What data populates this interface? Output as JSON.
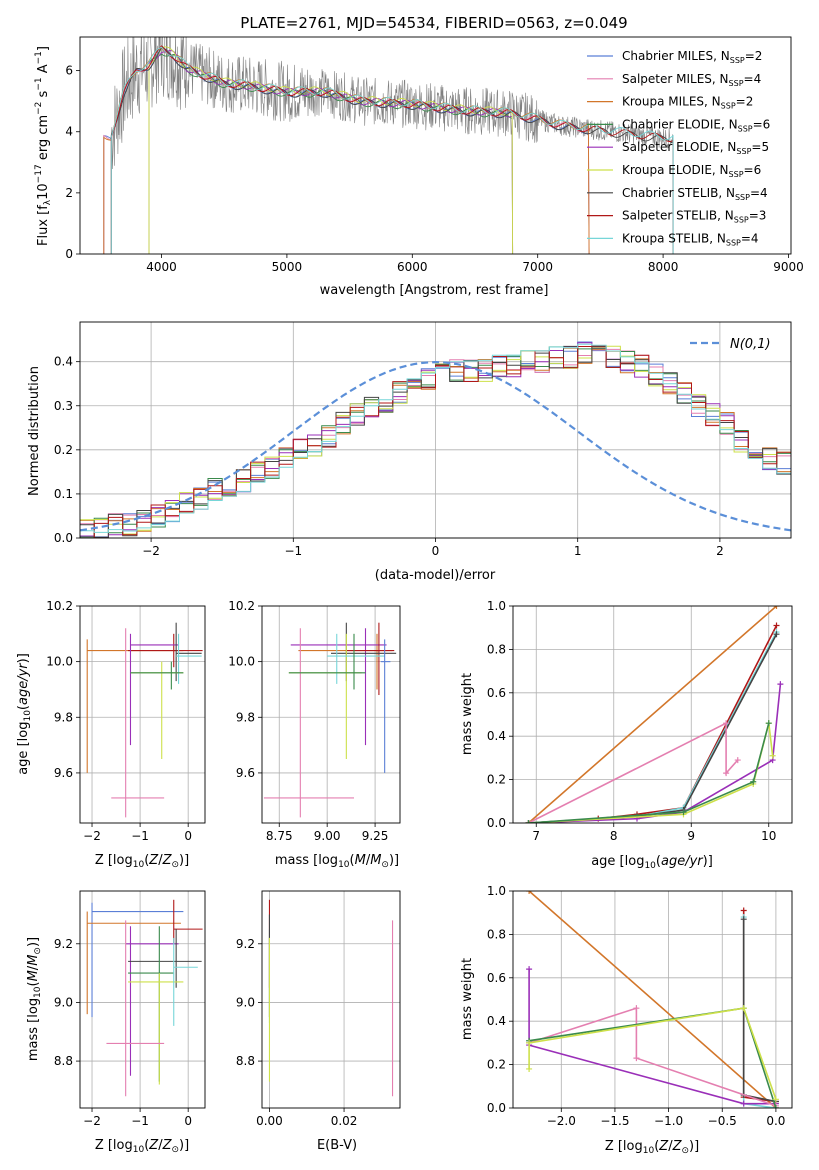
{
  "title": "PLATE=2761, MJD=54534, FIBERID=0563, z=0.049",
  "colors": {
    "chabrier_miles": "#5b7fd6",
    "salpeter_miles": "#e47fb0",
    "kroupa_miles": "#d2762a",
    "chabrier_elodie": "#3a8a4c",
    "salpeter_elodie": "#9a2fb8",
    "kroupa_elodie": "#cde04a",
    "chabrier_stelib": "#444444",
    "salpeter_stelib": "#b01818",
    "kroupa_stelib": "#76d6d8",
    "data": "#808080",
    "gauss": "#5b8fd8"
  },
  "chart_data": [
    {
      "type": "line",
      "xlabel": "wavelength [Angstrom, rest frame]",
      "ylabel": "Flux [f_λ10^-17 erg cm^-2 s^-1 A^-1]",
      "xlim": [
        3350,
        9020
      ],
      "ylim": [
        0,
        7.1
      ],
      "xticks": [
        4000,
        5000,
        6000,
        7000,
        8000,
        9000
      ],
      "yticks": [
        0,
        2,
        4,
        6
      ],
      "legend_position": "upper right",
      "continuum": {
        "x": [
          3600,
          3700,
          3800,
          3900,
          4000,
          4100,
          4200,
          4300,
          4500,
          4700,
          5000,
          5300,
          5600,
          6000,
          6400,
          6800,
          7200,
          7600,
          8000,
          8100
        ],
        "y": [
          3.9,
          5.3,
          6.0,
          6.2,
          6.7,
          6.5,
          6.1,
          5.9,
          5.6,
          5.5,
          5.3,
          5.3,
          5.0,
          4.9,
          4.7,
          4.6,
          4.2,
          4.0,
          3.8,
          3.8
        ]
      },
      "series": [
        {
          "name": "Chabrier MILES",
          "nssp": "2",
          "x_range": [
            3540,
            7410
          ]
        },
        {
          "name": "Salpeter MILES",
          "nssp": "4",
          "x_range": [
            3540,
            7410
          ]
        },
        {
          "name": "Kroupa MILES",
          "nssp": "2",
          "x_range": [
            3540,
            7410
          ]
        },
        {
          "name": "Chabrier ELODIE",
          "nssp": "6",
          "x_range": [
            3900,
            6800
          ]
        },
        {
          "name": "Salpeter ELODIE",
          "nssp": "5",
          "x_range": [
            3900,
            6800
          ]
        },
        {
          "name": "Kroupa ELODIE",
          "nssp": "6",
          "x_range": [
            3900,
            6800
          ]
        },
        {
          "name": "Chabrier STELIB",
          "nssp": "4",
          "x_range": [
            3600,
            8080
          ]
        },
        {
          "name": "Salpeter STELIB",
          "nssp": "3",
          "x_range": [
            3600,
            8080
          ]
        },
        {
          "name": "Kroupa STELIB",
          "nssp": "4",
          "x_range": [
            3600,
            8080
          ]
        }
      ]
    },
    {
      "type": "histogram",
      "xlabel": "(data-model)/error",
      "ylabel": "Normed distribution",
      "xlim": [
        -2.5,
        2.5
      ],
      "ylim": [
        0,
        0.49
      ],
      "xticks": [
        -2,
        -1,
        0,
        1,
        2
      ],
      "yticks": [
        0.0,
        0.1,
        0.2,
        0.3,
        0.4
      ],
      "legend": "N(0,1)",
      "bin_width": 0.1,
      "grid": true,
      "histogram_values": [
        0.02,
        0.02,
        0.03,
        0.03,
        0.04,
        0.05,
        0.06,
        0.08,
        0.09,
        0.11,
        0.12,
        0.13,
        0.15,
        0.16,
        0.18,
        0.2,
        0.21,
        0.23,
        0.26,
        0.28,
        0.3,
        0.31,
        0.33,
        0.35,
        0.36,
        0.37,
        0.38,
        0.38,
        0.38,
        0.39,
        0.39,
        0.4,
        0.4,
        0.41,
        0.41,
        0.42,
        0.42,
        0.41,
        0.4,
        0.39,
        0.37,
        0.35,
        0.33,
        0.3,
        0.28,
        0.26,
        0.22,
        0.2,
        0.18,
        0.17
      ]
    },
    {
      "type": "scatter",
      "xlabel": "Z [log10(Z/Z⊙)]",
      "ylabel": "age [log10(age/yr)]",
      "xlim": [
        -2.25,
        0.35
      ],
      "ylim": [
        9.42,
        10.2
      ],
      "xticks": [
        -2,
        -1,
        0
      ],
      "yticks": [
        9.6,
        9.8,
        10.0,
        10.2
      ],
      "crosses": [
        {
          "x": [
            -2.1,
            -0.1
          ],
          "y": 10.04,
          "xc": -2.1,
          "ylo": 9.6,
          "yhi": 10.08,
          "color": "kroupa_miles"
        },
        {
          "x": [
            -1.25,
            0.3
          ],
          "y": 10.04,
          "xc": -0.3,
          "ylo": 9.98,
          "yhi": 10.1,
          "color": "salpeter_stelib"
        },
        {
          "x": [
            -1.2,
            -0.2
          ],
          "y": 10.06,
          "xc": -1.2,
          "ylo": 9.7,
          "yhi": 10.1,
          "color": "salpeter_elodie"
        },
        {
          "x": [
            -0.25,
            0.28
          ],
          "y": 10.03,
          "xc": -0.25,
          "ylo": 9.93,
          "yhi": 10.14,
          "color": "chabrier_stelib"
        },
        {
          "x": [
            -1.2,
            -0.1
          ],
          "y": 9.96,
          "xc": -0.55,
          "ylo": 9.65,
          "yhi": 10.0,
          "color": "kroupa_elodie"
        },
        {
          "x": [
            -0.25,
            0.28
          ],
          "y": 10.02,
          "xc": -0.2,
          "ylo": 9.92,
          "yhi": 10.1,
          "color": "kroupa_stelib"
        },
        {
          "x": [
            -1.6,
            -0.5
          ],
          "y": 9.51,
          "xc": -1.3,
          "ylo": 9.44,
          "yhi": 10.12,
          "color": "salpeter_miles"
        },
        {
          "x": [
            -1.2,
            -0.1
          ],
          "y": 9.96,
          "xc": -0.35,
          "ylo": 9.9,
          "yhi": 10.0,
          "color": "chabrier_elodie"
        }
      ]
    },
    {
      "type": "scatter",
      "xlabel": "mass [log10(M/M⊙)]",
      "ylabel": "",
      "xlim": [
        8.66,
        9.38
      ],
      "ylim": [
        9.42,
        10.2
      ],
      "xticks": [
        8.75,
        9.0,
        9.25
      ],
      "yticks": [
        9.6,
        9.8,
        10.0,
        10.2
      ],
      "crosses": [
        {
          "x": [
            8.85,
            9.34
          ],
          "y": 10.04,
          "xc": 9.26,
          "ylo": 9.9,
          "yhi": 10.1,
          "color": "kroupa_miles"
        },
        {
          "x": [
            8.81,
            9.31
          ],
          "y": 10.06,
          "xc": 9.2,
          "ylo": 9.7,
          "yhi": 10.12,
          "color": "salpeter_elodie"
        },
        {
          "x": [
            9.1,
            9.35
          ],
          "y": 10.04,
          "xc": 9.27,
          "ylo": 9.88,
          "yhi": 10.14,
          "color": "salpeter_stelib"
        },
        {
          "x": [
            9.02,
            9.36
          ],
          "y": 10.03,
          "xc": 9.1,
          "ylo": 9.93,
          "yhi": 10.14,
          "color": "chabrier_stelib"
        },
        {
          "x": [
            8.8,
            9.18
          ],
          "y": 9.96,
          "xc": 9.1,
          "ylo": 9.65,
          "yhi": 10.1,
          "color": "kroupa_elodie"
        },
        {
          "x": [
            9.0,
            9.3
          ],
          "y": 10.02,
          "xc": 9.05,
          "ylo": 9.92,
          "yhi": 10.1,
          "color": "kroupa_stelib"
        },
        {
          "x": [
            8.67,
            9.14
          ],
          "y": 9.51,
          "xc": 8.86,
          "ylo": 9.44,
          "yhi": 10.12,
          "color": "salpeter_miles"
        },
        {
          "x": [
            8.8,
            9.2
          ],
          "y": 9.96,
          "xc": 9.14,
          "ylo": 9.9,
          "yhi": 10.1,
          "color": "chabrier_elodie"
        },
        {
          "x": [
            9.28,
            9.33
          ],
          "y": 10.0,
          "xc": 9.3,
          "ylo": 9.6,
          "yhi": 10.08,
          "color": "chabrier_miles"
        }
      ]
    },
    {
      "type": "line",
      "xlabel": "age [log10(age/yr)]",
      "ylabel": "mass weight",
      "xlim": [
        6.7,
        10.3
      ],
      "ylim": [
        0,
        1
      ],
      "xticks": [
        7,
        8,
        9,
        10
      ],
      "yticks": [
        0.0,
        0.2,
        0.4,
        0.6,
        0.8,
        1.0
      ],
      "series": [
        {
          "key": "kroupa_miles",
          "x": [
            6.9,
            10.1
          ],
          "y": [
            0.0,
            1.0
          ]
        },
        {
          "key": "salpeter_stelib",
          "x": [
            6.9,
            7.8,
            8.3,
            8.9,
            10.1
          ],
          "y": [
            0.0,
            0.02,
            0.04,
            0.07,
            0.91
          ]
        },
        {
          "key": "kroupa_stelib",
          "x": [
            6.9,
            8.3,
            8.9,
            10.1
          ],
          "y": [
            0.0,
            0.03,
            0.07,
            0.88
          ]
        },
        {
          "key": "chabrier_stelib",
          "x": [
            6.9,
            8.3,
            8.9,
            10.1
          ],
          "y": [
            0.0,
            0.03,
            0.06,
            0.87
          ]
        },
        {
          "key": "salpeter_miles",
          "x": [
            6.9,
            9.45,
            9.45,
            9.6
          ],
          "y": [
            0.0,
            0.46,
            0.23,
            0.29
          ]
        },
        {
          "key": "salpeter_elodie",
          "x": [
            6.9,
            8.3,
            8.9,
            10.05,
            10.15
          ],
          "y": [
            0.0,
            0.02,
            0.05,
            0.29,
            0.64
          ]
        },
        {
          "key": "kroupa_elodie",
          "x": [
            6.9,
            8.9,
            9.8,
            10.0,
            10.05
          ],
          "y": [
            0.0,
            0.04,
            0.18,
            0.46,
            0.31
          ]
        },
        {
          "key": "chabrier_elodie",
          "x": [
            6.9,
            8.9,
            9.8,
            10.0
          ],
          "y": [
            0.0,
            0.05,
            0.19,
            0.46
          ]
        }
      ]
    },
    {
      "type": "scatter",
      "xlabel": "Z [log10(Z/Z⊙)]",
      "ylabel": "mass [log10(M/M⊙)]",
      "xlim": [
        -2.25,
        0.35
      ],
      "ylim": [
        8.64,
        9.38
      ],
      "xticks": [
        -2,
        -1,
        0
      ],
      "yticks": [
        8.8,
        9.0,
        9.2
      ],
      "crosses": [
        {
          "x": [
            -2.0,
            -0.1
          ],
          "y": 9.31,
          "xc": -2.0,
          "ylo": 8.95,
          "yhi": 9.34,
          "color": "chabrier_miles"
        },
        {
          "x": [
            -2.1,
            -0.15
          ],
          "y": 9.27,
          "xc": -2.1,
          "ylo": 8.96,
          "yhi": 9.31,
          "color": "kroupa_miles"
        },
        {
          "x": [
            -0.3,
            0.3
          ],
          "y": 9.25,
          "xc": -0.3,
          "ylo": 9.2,
          "yhi": 9.35,
          "color": "salpeter_stelib"
        },
        {
          "x": [
            -1.3,
            -0.2
          ],
          "y": 9.2,
          "xc": -1.2,
          "ylo": 8.75,
          "yhi": 9.26,
          "color": "salpeter_elodie"
        },
        {
          "x": [
            -1.25,
            0.28
          ],
          "y": 9.14,
          "xc": -0.25,
          "ylo": 9.05,
          "yhi": 9.25,
          "color": "chabrier_stelib"
        },
        {
          "x": [
            -1.25,
            -0.3
          ],
          "y": 9.1,
          "xc": -0.6,
          "ylo": 8.73,
          "yhi": 9.26,
          "color": "chabrier_elodie"
        },
        {
          "x": [
            -1.25,
            -0.1
          ],
          "y": 9.07,
          "xc": -0.6,
          "ylo": 8.72,
          "yhi": 9.1,
          "color": "kroupa_elodie"
        },
        {
          "x": [
            -0.3,
            0.2
          ],
          "y": 9.12,
          "xc": -0.3,
          "ylo": 8.92,
          "yhi": 9.22,
          "color": "kroupa_stelib"
        },
        {
          "x": [
            -1.7,
            -0.5
          ],
          "y": 8.86,
          "xc": -1.3,
          "ylo": 8.68,
          "yhi": 9.28,
          "color": "salpeter_miles"
        }
      ]
    },
    {
      "type": "scatter",
      "xlabel": "E(B-V)",
      "ylabel": "",
      "xlim": [
        -0.002,
        0.035
      ],
      "ylim": [
        8.64,
        9.38
      ],
      "xticks": [
        0.0,
        0.02
      ],
      "yticks": [
        8.8,
        9.0,
        9.2
      ],
      "vlines": [
        {
          "x": 0.0,
          "ylo": 9.05,
          "yhi": 9.35,
          "color": "salpeter_stelib"
        },
        {
          "x": 0.0,
          "ylo": 8.93,
          "yhi": 9.25,
          "color": "kroupa_stelib"
        },
        {
          "x": 0.0,
          "ylo": 8.95,
          "yhi": 9.3,
          "color": "chabrier_stelib"
        },
        {
          "x": 0.0,
          "ylo": 8.73,
          "yhi": 9.22,
          "color": "kroupa_elodie"
        },
        {
          "x": 0.033,
          "ylo": 8.68,
          "yhi": 9.28,
          "color": "salpeter_miles"
        }
      ]
    },
    {
      "type": "line",
      "xlabel": "Z [log10(Z/Z⊙)]",
      "ylabel": "mass weight",
      "xlim": [
        -2.45,
        0.15
      ],
      "ylim": [
        0,
        1
      ],
      "xticks": [
        -2.0,
        -1.5,
        -1.0,
        -0.5,
        0.0
      ],
      "yticks": [
        0.0,
        0.2,
        0.4,
        0.6,
        0.8,
        1.0
      ],
      "series": [
        {
          "key": "kroupa_miles",
          "x": [
            -2.3,
            0.0
          ],
          "y": [
            1.0,
            0.0
          ]
        },
        {
          "key": "salpeter_stelib",
          "x": [
            -0.3,
            -0.3,
            0.0
          ],
          "y": [
            0.91,
            0.05,
            0.03
          ]
        },
        {
          "key": "kroupa_stelib",
          "x": [
            -0.3,
            -0.3,
            0.0
          ],
          "y": [
            0.88,
            0.02,
            0.0
          ]
        },
        {
          "key": "chabrier_stelib",
          "x": [
            -0.3,
            -0.3,
            0.0
          ],
          "y": [
            0.87,
            0.06,
            0.03
          ]
        },
        {
          "key": "salpeter_elodie",
          "x": [
            -2.3,
            -2.3,
            -0.3,
            0.0
          ],
          "y": [
            0.64,
            0.29,
            0.02,
            0.02
          ]
        },
        {
          "key": "salpeter_miles",
          "x": [
            -2.3,
            -1.3,
            -1.3,
            0.0
          ],
          "y": [
            0.3,
            0.46,
            0.23,
            0.01
          ]
        },
        {
          "key": "chabrier_elodie",
          "x": [
            -2.3,
            -0.3,
            0.0
          ],
          "y": [
            0.31,
            0.46,
            0.0
          ]
        },
        {
          "key": "kroupa_elodie",
          "x": [
            -2.3,
            -2.3,
            -0.3,
            0.0
          ],
          "y": [
            0.18,
            0.3,
            0.46,
            0.04
          ]
        }
      ]
    }
  ]
}
